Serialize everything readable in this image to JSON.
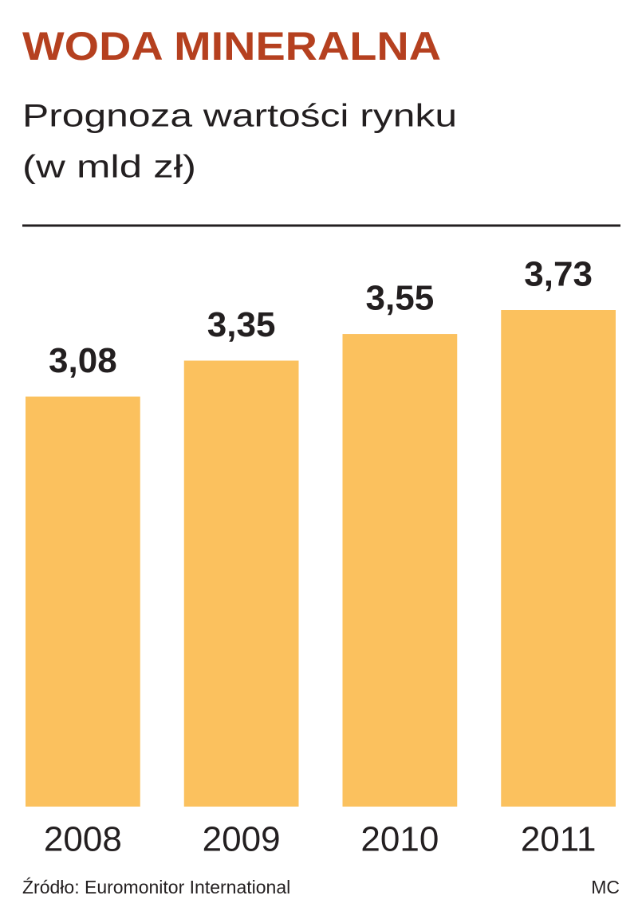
{
  "chart_data": {
    "type": "bar",
    "title": "WODA MINERALNA",
    "subtitle": [
      "Prognoza wartości rynku",
      "(w mld zł)"
    ],
    "categories": [
      "2008",
      "2009",
      "2010",
      "2011"
    ],
    "values": [
      3.08,
      3.35,
      3.55,
      3.73
    ],
    "value_labels": [
      "3,08",
      "3,35",
      "3,55",
      "3,73"
    ],
    "color": "#fbc15e",
    "source": "Źródło: Euromonitor International",
    "credit": "MC"
  }
}
